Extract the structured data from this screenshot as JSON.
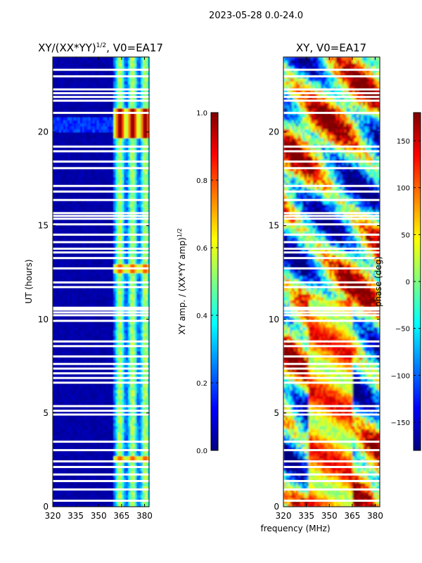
{
  "figure_title": "2023-05-28 0.0-24.0",
  "colors": {
    "jet": [
      "#00007f",
      "#0000ff",
      "#007fff",
      "#00ffff",
      "#7fff7f",
      "#ffff00",
      "#ff7f00",
      "#ff0000",
      "#7f0000"
    ]
  },
  "chart_data": [
    {
      "type": "heatmap",
      "title_main": "XY/(XX*YY)",
      "title_sup": "1/2",
      "title_tail": ", V0=EA17",
      "xlabel": "",
      "ylabel": "UT (hours)",
      "xlim": [
        320,
        383
      ],
      "ylim": [
        0,
        24
      ],
      "xticks": [
        {
          "v": 320,
          "label": "320"
        },
        {
          "v": 335,
          "label": "335"
        },
        {
          "v": 350,
          "label": "350"
        },
        {
          "v": 365,
          "label": "365"
        },
        {
          "v": 380,
          "label": "380"
        }
      ],
      "yticks": [
        {
          "v": 0,
          "label": "0"
        },
        {
          "v": 5,
          "label": "5"
        },
        {
          "v": 10,
          "label": "10"
        },
        {
          "v": 15,
          "label": "15"
        },
        {
          "v": 20,
          "label": "20"
        }
      ],
      "colorbar": {
        "label_main": "XY amp. / (XX*YY amp)",
        "label_sup": "1/2",
        "range": [
          0,
          1
        ],
        "ticks": [
          {
            "v": 0.0,
            "label": "0.0"
          },
          {
            "v": 0.2,
            "label": "0.2"
          },
          {
            "v": 0.4,
            "label": "0.4"
          },
          {
            "v": 0.6,
            "label": "0.6"
          },
          {
            "v": 0.8,
            "label": "0.8"
          },
          {
            "v": 1.0,
            "label": "1.0"
          }
        ]
      }
    },
    {
      "type": "heatmap",
      "title_main": "XY, V0=EA17",
      "title_sup": "",
      "title_tail": "",
      "xlabel": "frequency (MHz)",
      "ylabel": "",
      "xlim": [
        320,
        383
      ],
      "ylim": [
        0,
        24
      ],
      "xticks": [
        {
          "v": 320,
          "label": "320"
        },
        {
          "v": 335,
          "label": "335"
        },
        {
          "v": 350,
          "label": "350"
        },
        {
          "v": 365,
          "label": "365"
        },
        {
          "v": 380,
          "label": "380"
        }
      ],
      "yticks": [
        {
          "v": 0,
          "label": "0"
        },
        {
          "v": 5,
          "label": "5"
        },
        {
          "v": 10,
          "label": "10"
        },
        {
          "v": 15,
          "label": "15"
        },
        {
          "v": 20,
          "label": "20"
        }
      ],
      "colorbar": {
        "label_main": "phase (deg)",
        "label_sup": "",
        "range": [
          -180,
          180
        ],
        "ticks": [
          {
            "v": -150,
            "label": "−150"
          },
          {
            "v": -100,
            "label": "−100"
          },
          {
            "v": -50,
            "label": "−50"
          },
          {
            "v": 0,
            "label": "0"
          },
          {
            "v": 50,
            "label": "50"
          },
          {
            "v": 100,
            "label": "100"
          },
          {
            "v": 150,
            "label": "150"
          }
        ]
      }
    }
  ],
  "flagged_hours": [
    0.3,
    0.9,
    1.35,
    1.7,
    2.1,
    2.4,
    3.0,
    3.45,
    4.9,
    5.1,
    5.35,
    6.6,
    6.85,
    7.1,
    7.35,
    7.6,
    8.0,
    8.55,
    8.8,
    9.9,
    10.2,
    10.35,
    10.5,
    10.6,
    11.7,
    11.95,
    12.7,
    13.25,
    13.55,
    13.75,
    14.1,
    14.5,
    15.05,
    15.35,
    15.5,
    15.65,
    16.35,
    16.8,
    17.1,
    18.05,
    18.4,
    18.95,
    19.2,
    21.0,
    21.65,
    21.85,
    22.05,
    22.25,
    22.95,
    23.3
  ]
}
